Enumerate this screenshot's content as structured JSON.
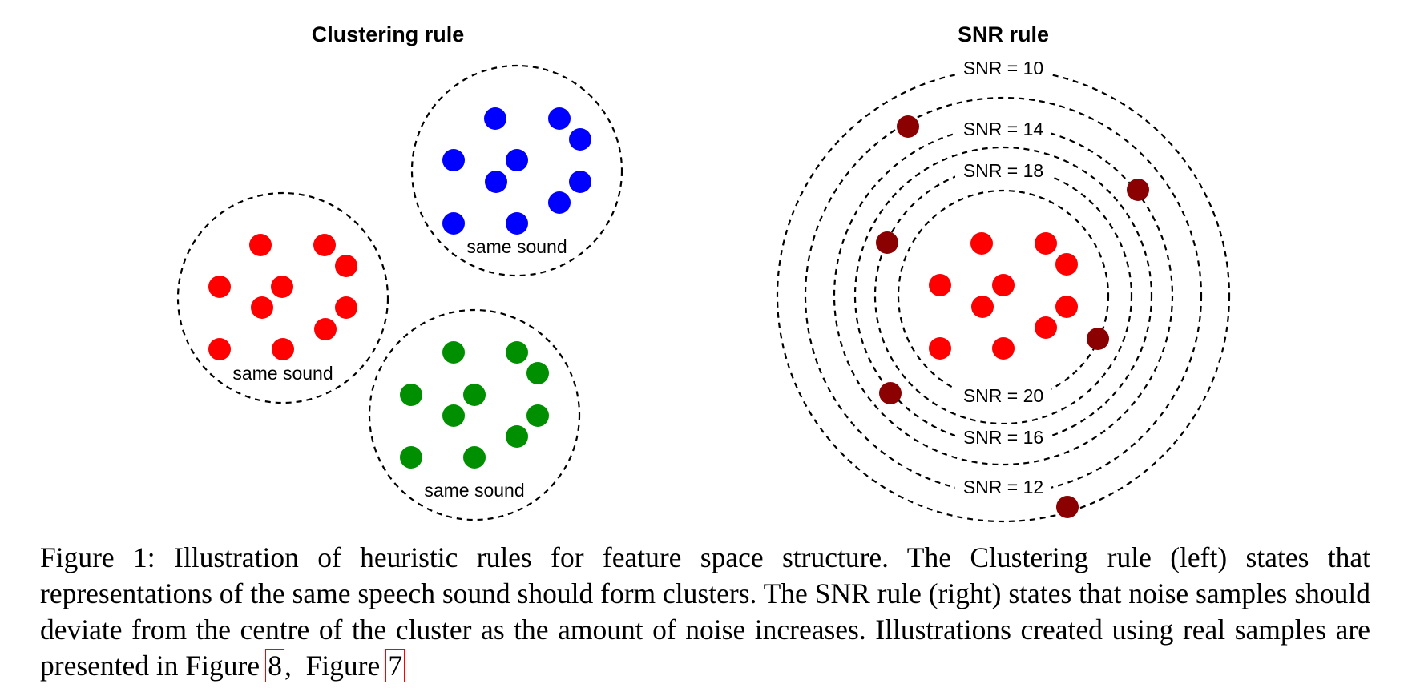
{
  "panels": {
    "clustering": {
      "title": "Clustering rule",
      "colors": {
        "red": "#ff0000",
        "blue": "#0000ff",
        "green": "#008f00"
      },
      "clusters": [
        {
          "name": "red",
          "color": "#ff0000",
          "label": "same sound"
        },
        {
          "name": "blue",
          "color": "#0000ff",
          "label": "same sound"
        },
        {
          "name": "green",
          "color": "#008f00",
          "label": "same sound"
        }
      ]
    },
    "snr": {
      "title": "SNR rule",
      "clean_color": "#ff0000",
      "noise_color": "#8b0000",
      "rings": [
        {
          "snr": 20,
          "label": "SNR = 20"
        },
        {
          "snr": 18,
          "label": "SNR = 18"
        },
        {
          "snr": 16,
          "label": "SNR = 16"
        },
        {
          "snr": 14,
          "label": "SNR = 14"
        },
        {
          "snr": 12,
          "label": "SNR = 12"
        },
        {
          "snr": 10,
          "label": "SNR = 10"
        }
      ]
    }
  },
  "caption": {
    "text": "Figure 1: Illustration of heuristic rules for feature space structure. The Clustering rule (left) states that representations of the same speech sound should form clusters. The SNR rule (right) states that noise samples should deviate from the centre of the cluster as the amount of noise increases. Illustrations created using real samples are presented in ",
    "fig_word_1": "Figure",
    "ref_1": "8",
    "separator": ",",
    "fig_word_2": "Figure",
    "ref_2": "7"
  }
}
